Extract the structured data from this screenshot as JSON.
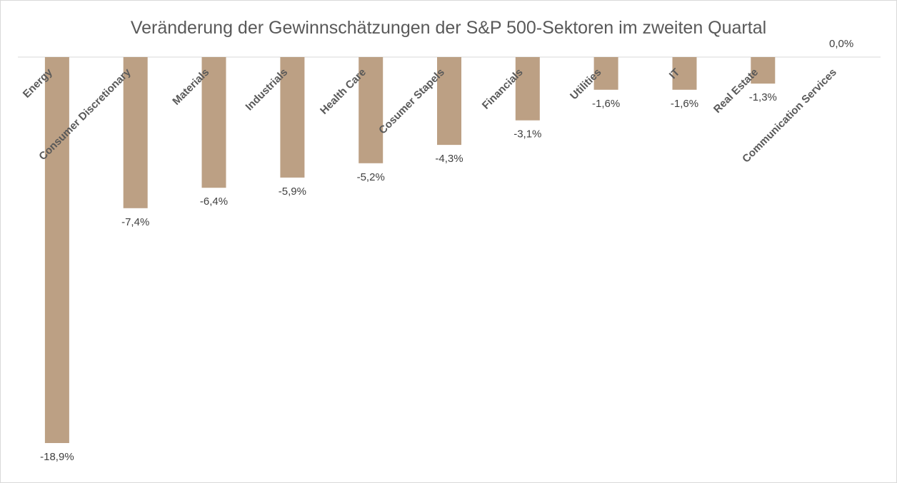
{
  "chart_data": {
    "type": "bar",
    "title": "Veränderung der Gewinnschätzungen der S&P 500-Sektoren im zweiten Quartal",
    "xlabel": "",
    "ylabel": "",
    "categories": [
      "Energy",
      "Consumer Discretionary",
      "Materials",
      "Industrials",
      "Health Care",
      "Cosumer Stapels",
      "Financials",
      "Utilities",
      "IT",
      "Real Estate",
      "Communication Services"
    ],
    "values": [
      -18.9,
      -7.4,
      -6.4,
      -5.9,
      -5.2,
      -4.3,
      -3.1,
      -1.6,
      -1.6,
      -1.3,
      0.0
    ],
    "value_labels": [
      "-18,9%",
      "-7,4%",
      "-6,4%",
      "-5,9%",
      "-5,2%",
      "-4,3%",
      "-3,1%",
      "-1,6%",
      "-1,6%",
      "-1,3%",
      "0,0%"
    ],
    "ylim": [
      -18.9,
      0
    ],
    "grid": false,
    "legend": "none",
    "bar_color": "#bca084",
    "axis_color": "#d9d9d9"
  }
}
